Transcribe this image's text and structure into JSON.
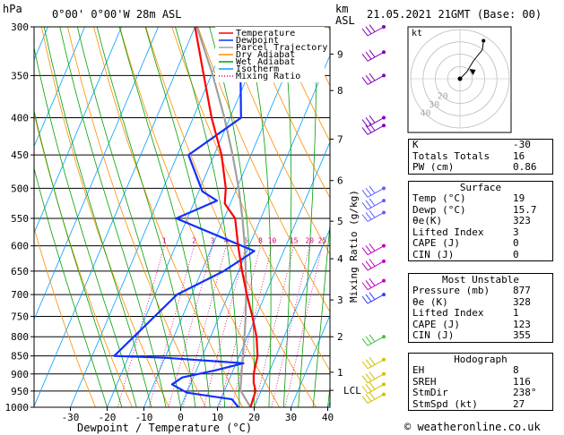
{
  "header": {
    "hpa_unit": "hPa",
    "location": "0°00' 0°00'W 28m ASL",
    "km_unit_1": "km",
    "km_unit_2": "ASL",
    "datetime": "21.05.2021 21GMT (Base: 00)"
  },
  "chart_data": {
    "type": "line",
    "xlabel": "Dewpoint / Temperature (°C)",
    "ylabel": "hPa",
    "xlim": [
      -35,
      40
    ],
    "ylim": [
      1000,
      300
    ],
    "x_ticks": [
      -30,
      -20,
      -10,
      0,
      10,
      20,
      30,
      40
    ],
    "pressure_levels": [
      300,
      350,
      400,
      450,
      500,
      550,
      600,
      650,
      700,
      750,
      800,
      850,
      900,
      950,
      1000
    ],
    "height_km_labels": [
      {
        "label": "9",
        "p": 327
      },
      {
        "label": "8",
        "p": 367
      },
      {
        "label": "7",
        "p": 428
      },
      {
        "label": "6",
        "p": 488
      },
      {
        "label": "5",
        "p": 555
      },
      {
        "label": "4",
        "p": 625
      },
      {
        "label": "3",
        "p": 712
      },
      {
        "label": "2",
        "p": 800
      },
      {
        "label": "1",
        "p": 895
      },
      {
        "label": "LCL",
        "p": 948
      }
    ],
    "mixing_ratio_label": "Mixing Ratio (g/kg)",
    "mixing_ratio_values": [
      "1",
      "2",
      "3",
      "4",
      "6",
      "8",
      "10",
      "15",
      "20",
      "25"
    ],
    "legend": [
      {
        "name": "Temperature",
        "color": "#ff0000"
      },
      {
        "name": "Dewpoint",
        "color": "#1030ff"
      },
      {
        "name": "Parcel Trajectory",
        "color": "#a0a0a0"
      },
      {
        "name": "Dry Adiabat",
        "color": "#ff8c00"
      },
      {
        "name": "Wet Adiabat",
        "color": "#00a000"
      },
      {
        "name": "Isotherm",
        "color": "#00a0ff"
      },
      {
        "name": "Mixing Ratio",
        "color": "#d0007a"
      }
    ],
    "series": [
      {
        "name": "Temperature",
        "color": "#ff0000",
        "points": [
          [
            1000,
            19
          ],
          [
            950,
            18.5
          ],
          [
            925,
            17
          ],
          [
            900,
            16
          ],
          [
            875,
            15.5
          ],
          [
            850,
            15
          ],
          [
            800,
            12.5
          ],
          [
            750,
            9
          ],
          [
            700,
            5
          ],
          [
            650,
            1
          ],
          [
            600,
            -3
          ],
          [
            550,
            -7
          ],
          [
            525,
            -11.5
          ],
          [
            500,
            -13
          ],
          [
            450,
            -18
          ],
          [
            400,
            -25
          ],
          [
            350,
            -32
          ],
          [
            300,
            -40
          ]
        ]
      },
      {
        "name": "Dewpoint",
        "color": "#1030ff",
        "points": [
          [
            1000,
            15.7
          ],
          [
            975,
            13
          ],
          [
            955,
            0
          ],
          [
            930,
            -5
          ],
          [
            910,
            -3
          ],
          [
            890,
            5
          ],
          [
            870,
            12
          ],
          [
            855,
            -10
          ],
          [
            850,
            -24
          ],
          [
            700,
            -14
          ],
          [
            650,
            -4
          ],
          [
            610,
            2
          ],
          [
            550,
            -23
          ],
          [
            520,
            -14
          ],
          [
            505,
            -19
          ],
          [
            450,
            -27
          ],
          [
            400,
            -17
          ],
          [
            350,
            -22
          ],
          [
            310,
            -27
          ],
          [
            300,
            -28
          ]
        ]
      },
      {
        "name": "Parcel Trajectory",
        "color": "#a0a0a0",
        "points": [
          [
            1000,
            19
          ],
          [
            948,
            14.3
          ],
          [
            900,
            12.7
          ],
          [
            850,
            11
          ],
          [
            800,
            9.2
          ],
          [
            750,
            7.2
          ],
          [
            700,
            4.8
          ],
          [
            650,
            2
          ],
          [
            600,
            -1.2
          ],
          [
            550,
            -5
          ],
          [
            500,
            -9.5
          ],
          [
            450,
            -15
          ],
          [
            400,
            -21.5
          ],
          [
            350,
            -29.5
          ],
          [
            300,
            -39.5
          ]
        ]
      }
    ]
  },
  "hodograph": {
    "unit": "kt",
    "ring_labels": [
      "20",
      "30",
      "40"
    ],
    "trace": [
      [
        0,
        0
      ],
      [
        3,
        3
      ],
      [
        6,
        8
      ],
      [
        10,
        13
      ],
      [
        10.5,
        17
      ]
    ],
    "storm_motion": [
      7,
      4
    ]
  },
  "wind_barbs": [
    {
      "p": 300,
      "color": "#8000c0"
    },
    {
      "p": 325,
      "color": "#8000c0"
    },
    {
      "p": 350,
      "color": "#8000c0"
    },
    {
      "p": 400,
      "color": "#8000c0"
    },
    {
      "p": 410,
      "color": "#8000c0"
    },
    {
      "p": 500,
      "color": "#6060ff"
    },
    {
      "p": 520,
      "color": "#6060ff"
    },
    {
      "p": 540,
      "color": "#6060ff"
    },
    {
      "p": 600,
      "color": "#c000c0"
    },
    {
      "p": 630,
      "color": "#c000c0"
    },
    {
      "p": 670,
      "color": "#c000c0"
    },
    {
      "p": 700,
      "color": "#3040ff"
    },
    {
      "p": 800,
      "color": "#40c040"
    },
    {
      "p": 860,
      "color": "#d0c000"
    },
    {
      "p": 900,
      "color": "#d0c000"
    },
    {
      "p": 930,
      "color": "#d0c000"
    },
    {
      "p": 960,
      "color": "#d0c000"
    }
  ],
  "indices": {
    "rows": [
      {
        "label": "K",
        "value": "-30"
      },
      {
        "label": "Totals Totals",
        "value": "16"
      },
      {
        "label": "PW (cm)",
        "value": "0.86"
      }
    ]
  },
  "surface": {
    "title": "Surface",
    "rows": [
      {
        "label": "Temp (°C)",
        "value": "19"
      },
      {
        "label": "Dewp (°C)",
        "value": "15.7"
      },
      {
        "label": "θe(K)",
        "value": "323"
      },
      {
        "label": "Lifted Index",
        "value": "3"
      },
      {
        "label": "CAPE (J)",
        "value": "0"
      },
      {
        "label": "CIN (J)",
        "value": "0"
      }
    ]
  },
  "most_unstable": {
    "title": "Most Unstable",
    "rows": [
      {
        "label": "Pressure (mb)",
        "value": "877"
      },
      {
        "label": "θe (K)",
        "value": "328"
      },
      {
        "label": "Lifted Index",
        "value": "1"
      },
      {
        "label": "CAPE (J)",
        "value": "123"
      },
      {
        "label": "CIN (J)",
        "value": "355"
      }
    ]
  },
  "hodograph_table": {
    "title": "Hodograph",
    "rows": [
      {
        "label": "EH",
        "value": "8"
      },
      {
        "label": "SREH",
        "value": "116"
      },
      {
        "label": "StmDir",
        "value": "238°"
      },
      {
        "label": "StmSpd (kt)",
        "value": "27"
      }
    ]
  },
  "footer": {
    "copyright": "© weatheronline.co.uk"
  }
}
